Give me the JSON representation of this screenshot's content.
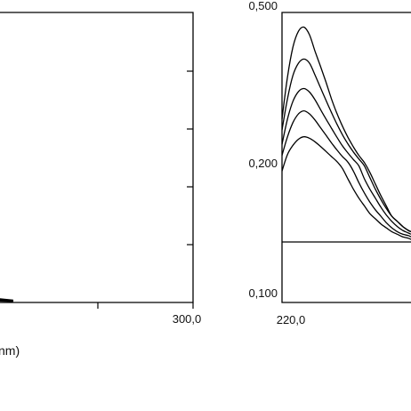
{
  "chart_data": [
    {
      "type": "line",
      "title": "",
      "xlabel": "nm)",
      "ylabel": "",
      "x_tick_labels": [
        "300,0"
      ],
      "xlim": [
        100.0,
        300.0
      ],
      "ylim": [
        0.0,
        1.0
      ],
      "grid": false,
      "series": [
        {
          "x": [
            100,
            120,
            140,
            160,
            180
          ],
          "y": [
            0.06,
            0.045,
            0.03,
            0.018,
            0.008
          ]
        }
      ]
    },
    {
      "type": "line",
      "title": "",
      "xlabel": "",
      "ylabel": "",
      "y_tick_labels": [
        "0,500",
        "0,200",
        "0,100"
      ],
      "x_tick_labels": [
        "220,0"
      ],
      "xlim": [
        215.0,
        262.0
      ],
      "ylim": [
        0.1,
        0.5
      ],
      "grid": false,
      "baseline": 0.14,
      "series": [
        {
          "x": [
            215,
            217,
            219,
            221,
            223,
            225,
            227,
            229,
            231,
            233,
            235,
            237,
            239,
            241,
            243,
            245,
            247,
            249,
            251,
            253,
            255,
            257,
            259,
            261,
            262
          ],
          "y": [
            0.29,
            0.373,
            0.432,
            0.463,
            0.471,
            0.456,
            0.424,
            0.394,
            0.363,
            0.33,
            0.301,
            0.276,
            0.254,
            0.235,
            0.218,
            0.204,
            0.194,
            0.185,
            0.176,
            0.168,
            0.16,
            0.156,
            0.152,
            0.149,
            0.148
          ]
        },
        {
          "x": [
            215,
            217,
            219,
            221,
            223,
            225,
            227,
            229,
            231,
            233,
            235,
            237,
            239,
            241,
            243,
            245,
            247,
            249,
            251,
            253,
            255,
            257,
            259,
            261,
            262
          ],
          "y": [
            0.268,
            0.33,
            0.376,
            0.4,
            0.408,
            0.4,
            0.377,
            0.352,
            0.327,
            0.303,
            0.28,
            0.259,
            0.241,
            0.225,
            0.211,
            0.199,
            0.19,
            0.181,
            0.173,
            0.166,
            0.16,
            0.156,
            0.152,
            0.149,
            0.148
          ]
        },
        {
          "x": [
            215,
            217,
            219,
            221,
            223,
            225,
            227,
            229,
            231,
            233,
            235,
            237,
            239,
            241,
            243,
            245,
            247,
            249,
            251,
            253,
            255,
            257,
            259,
            261,
            262
          ],
          "y": [
            0.24,
            0.29,
            0.325,
            0.344,
            0.35,
            0.343,
            0.328,
            0.309,
            0.29,
            0.272,
            0.254,
            0.237,
            0.223,
            0.21,
            0.199,
            0.189,
            0.181,
            0.174,
            0.167,
            0.161,
            0.156,
            0.152,
            0.149,
            0.147,
            0.146
          ]
        },
        {
          "x": [
            215,
            217,
            219,
            221,
            223,
            225,
            227,
            229,
            231,
            233,
            235,
            237,
            239,
            241,
            243,
            245,
            247,
            249,
            251,
            253,
            255,
            257,
            259,
            261,
            262
          ],
          "y": [
            0.218,
            0.255,
            0.283,
            0.3,
            0.306,
            0.3,
            0.288,
            0.273,
            0.258,
            0.243,
            0.229,
            0.216,
            0.205,
            0.195,
            0.186,
            0.178,
            0.171,
            0.165,
            0.16,
            0.155,
            0.151,
            0.148,
            0.146,
            0.145,
            0.144
          ]
        },
        {
          "x": [
            215,
            217,
            219,
            221,
            223,
            225,
            227,
            229,
            231,
            233,
            235,
            237,
            239,
            241,
            243,
            245,
            247,
            249,
            251,
            253,
            255,
            257,
            259,
            261,
            262
          ],
          "y": [
            0.195,
            0.22,
            0.238,
            0.25,
            0.255,
            0.252,
            0.245,
            0.236,
            0.226,
            0.216,
            0.206,
            0.197,
            0.189,
            0.181,
            0.174,
            0.168,
            0.162,
            0.158,
            0.154,
            0.151,
            0.148,
            0.146,
            0.144,
            0.143,
            0.142
          ]
        }
      ]
    }
  ]
}
